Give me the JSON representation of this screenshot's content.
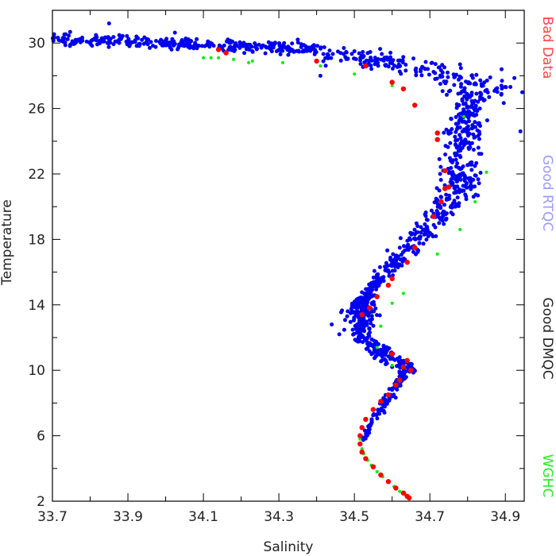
{
  "chart_data": {
    "type": "scatter",
    "title": "",
    "xlabel": "Salinity",
    "ylabel": "Temperature",
    "xlim": [
      33.7,
      34.95
    ],
    "ylim": [
      2,
      32
    ],
    "x_ticks": [
      "33.7",
      "33.9",
      "34.1",
      "34.3",
      "34.5",
      "34.7",
      "34.9"
    ],
    "y_ticks": [
      "2",
      "6",
      "10",
      "14",
      "18",
      "22",
      "26",
      "30"
    ],
    "grid": false,
    "legend_placement": "right-outside-vertical",
    "series": [
      {
        "name": "Bad Data",
        "color": "#ff0000",
        "points": [
          [
            34.14,
            29.6
          ],
          [
            34.16,
            29.4
          ],
          [
            34.4,
            28.9
          ],
          [
            34.53,
            28.6
          ],
          [
            34.6,
            27.6
          ],
          [
            34.63,
            27.2
          ],
          [
            34.66,
            26.2
          ],
          [
            34.72,
            24.5
          ],
          [
            34.72,
            24.1
          ],
          [
            34.74,
            22.2
          ],
          [
            34.74,
            21.1
          ],
          [
            34.75,
            21.2
          ],
          [
            34.73,
            20.3
          ],
          [
            34.71,
            19.4
          ],
          [
            34.66,
            17.5
          ],
          [
            34.64,
            16.6
          ],
          [
            34.6,
            15.6
          ],
          [
            34.59,
            15.2
          ],
          [
            34.56,
            14.5
          ],
          [
            34.54,
            13.8
          ],
          [
            34.52,
            13.4
          ],
          [
            34.6,
            11.0
          ],
          [
            34.64,
            10.6
          ],
          [
            34.63,
            10.2
          ],
          [
            34.65,
            10.0
          ],
          [
            34.62,
            9.4
          ],
          [
            34.61,
            9.1
          ],
          [
            34.59,
            8.5
          ],
          [
            34.57,
            8.1
          ],
          [
            34.55,
            7.6
          ],
          [
            34.53,
            7.0
          ],
          [
            34.52,
            6.5
          ],
          [
            34.515,
            6.0
          ],
          [
            34.515,
            5.5
          ],
          [
            34.52,
            5.0
          ],
          [
            34.53,
            4.6
          ],
          [
            34.55,
            4.1
          ],
          [
            34.57,
            3.6
          ],
          [
            34.59,
            3.2
          ],
          [
            34.61,
            2.8
          ],
          [
            34.63,
            2.5
          ],
          [
            34.64,
            2.3
          ],
          [
            34.645,
            2.2
          ]
        ]
      },
      {
        "name": "Good RTQC",
        "color": "#0000ee",
        "segments": [
          {
            "s0": 33.7,
            "s1": 34.4,
            "t0": 30.3,
            "t1": 29.6,
            "xs": 0.06,
            "ys": 0.35,
            "n": 320
          },
          {
            "s0": 34.4,
            "s1": 34.6,
            "t0": 29.6,
            "t1": 28.6,
            "xs": 0.04,
            "ys": 0.5,
            "n": 70
          },
          {
            "s0": 34.58,
            "s1": 34.88,
            "t0": 29.0,
            "t1": 27.0,
            "xs": 0.07,
            "ys": 0.8,
            "n": 120
          },
          {
            "s0": 34.8,
            "s1": 34.78,
            "t0": 27.0,
            "t1": 21.0,
            "xs": 0.05,
            "ys": 0.5,
            "n": 260
          },
          {
            "s0": 34.78,
            "s1": 34.62,
            "t0": 21.0,
            "t1": 17.0,
            "xs": 0.04,
            "ys": 0.4,
            "n": 140
          },
          {
            "s0": 34.62,
            "s1": 34.52,
            "t0": 17.0,
            "t1": 14.2,
            "xs": 0.025,
            "ys": 0.3,
            "n": 120
          },
          {
            "s0": 34.52,
            "s1": 34.52,
            "t0": 14.2,
            "t1": 11.8,
            "xs": 0.035,
            "ys": 0.5,
            "n": 160
          },
          {
            "s0": 34.54,
            "s1": 34.64,
            "t0": 11.6,
            "t1": 10.0,
            "xs": 0.03,
            "ys": 0.35,
            "n": 110
          },
          {
            "s0": 34.64,
            "s1": 34.55,
            "t0": 10.0,
            "t1": 7.0,
            "xs": 0.012,
            "ys": 0.15,
            "n": 80
          },
          {
            "s0": 34.55,
            "s1": 34.52,
            "t0": 7.0,
            "t1": 5.6,
            "xs": 0.006,
            "ys": 0.1,
            "n": 25
          }
        ],
        "outliers": [
          [
            33.85,
            31.2
          ],
          [
            34.89,
            28.4
          ],
          [
            34.94,
            24.6
          ],
          [
            34.41,
            28.0
          ],
          [
            34.44,
            12.8
          ],
          [
            34.46,
            12.2
          ],
          [
            34.86,
            27.9
          ],
          [
            34.5,
            29.5
          ],
          [
            34.78,
            28.7
          ],
          [
            34.62,
            10.8
          ]
        ]
      },
      {
        "name": "Good DMQC",
        "color": "#000000",
        "points": []
      },
      {
        "name": "WGHC",
        "color": "#00ee00",
        "points": [
          [
            34.1,
            29.1
          ],
          [
            34.12,
            29.1
          ],
          [
            34.14,
            29.1
          ],
          [
            34.18,
            29.0
          ],
          [
            34.23,
            28.9
          ],
          [
            34.22,
            28.8
          ],
          [
            34.31,
            28.8
          ],
          [
            34.41,
            28.6
          ],
          [
            34.5,
            28.1
          ],
          [
            34.6,
            27.4
          ],
          [
            34.79,
            25.5
          ],
          [
            34.85,
            22.1
          ],
          [
            34.82,
            20.3
          ],
          [
            34.78,
            18.6
          ],
          [
            34.72,
            17.1
          ],
          [
            34.63,
            14.7
          ],
          [
            34.6,
            14.1
          ],
          [
            34.57,
            12.7
          ],
          [
            34.56,
            11.4
          ],
          [
            34.6,
            10.3
          ],
          [
            34.515,
            5.8
          ],
          [
            34.52,
            5.2
          ],
          [
            34.525,
            4.9
          ],
          [
            34.535,
            4.5
          ],
          [
            34.545,
            4.2
          ],
          [
            34.56,
            3.8
          ],
          [
            34.575,
            3.5
          ],
          [
            34.59,
            3.2
          ],
          [
            34.605,
            2.9
          ],
          [
            34.62,
            2.6
          ],
          [
            34.635,
            2.4
          ]
        ]
      }
    ]
  }
}
